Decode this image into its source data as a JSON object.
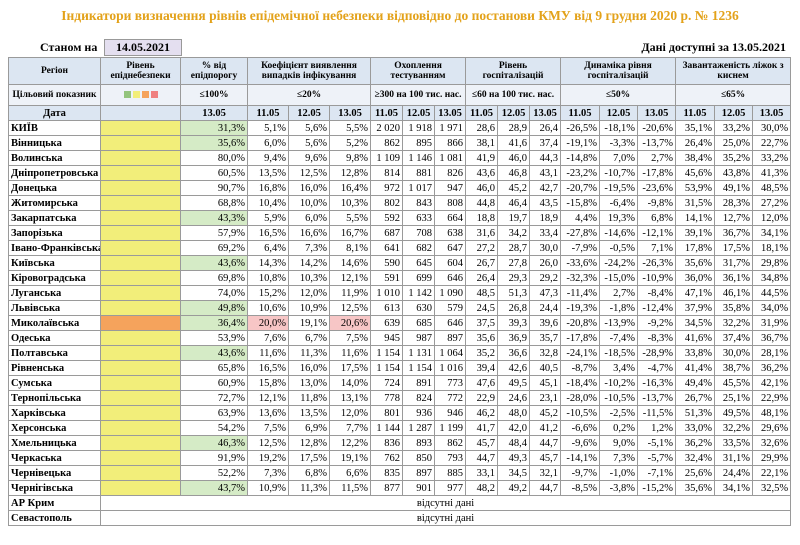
{
  "title": "Індикатори визначення рівнів епідемічної небезпеки відповідно до постанови КМУ від 9 грудня 2020 р. № 1236",
  "as_of_label": "Станом на",
  "as_of_date": "14.05.2021",
  "data_note": "Дані доступні за 13.05.2021",
  "colors": {
    "yellow": "#f2ee7a",
    "orange": "#f5a35c",
    "green": "#d5ebc6",
    "red": "#f7c6c6"
  },
  "header": {
    "region": "Регіон",
    "level": "Рівень епіднебезпеки",
    "pct": "% від епідпорогу",
    "groups": [
      "Коефіцієнт виявлення випадків інфікування",
      "Охоплення тестуванням",
      "Рівень госпіталізацій",
      "Динаміка рівня госпіталізацій",
      "Завантаженість ліжок з киснем"
    ]
  },
  "targets": {
    "label": "Цільовий показник",
    "pct": "≤100%",
    "groups": [
      "≤20%",
      "≥300 на 100 тис. нас.",
      "≤60 на 100 тис. нас.",
      "≤50%",
      "≤65%"
    ]
  },
  "dates": {
    "label": "Дата",
    "pct": "13.05",
    "groups": [
      "11.05",
      "12.05",
      "13.05"
    ]
  },
  "rows": [
    {
      "region": "КИЇВ",
      "level": "yellow",
      "pct": "31,3%",
      "pct_fill": "green",
      "values": [
        "5,1%",
        "5,6%",
        "5,5%",
        "2 020",
        "1 918",
        "1 971",
        "28,6",
        "28,9",
        "26,4",
        "-26,5%",
        "-18,1%",
        "-20,6%",
        "35,1%",
        "33,2%",
        "30,0%"
      ]
    },
    {
      "region": "Вінницька",
      "level": "yellow",
      "pct": "35,6%",
      "pct_fill": "green",
      "values": [
        "6,0%",
        "5,6%",
        "5,2%",
        "862",
        "895",
        "866",
        "38,1",
        "41,6",
        "37,4",
        "-19,1%",
        "-3,3%",
        "-13,7%",
        "26,4%",
        "25,0%",
        "22,7%"
      ]
    },
    {
      "region": "Волинська",
      "level": "yellow",
      "pct": "80,0%",
      "values": [
        "9,4%",
        "9,6%",
        "9,8%",
        "1 109",
        "1 146",
        "1 081",
        "41,9",
        "46,0",
        "44,3",
        "-14,8%",
        "7,0%",
        "2,7%",
        "38,4%",
        "35,2%",
        "33,2%"
      ]
    },
    {
      "region": "Дніпропетровська",
      "level": "yellow",
      "pct": "60,5%",
      "values": [
        "13,5%",
        "12,5%",
        "12,8%",
        "814",
        "881",
        "826",
        "43,6",
        "46,8",
        "43,1",
        "-23,2%",
        "-10,7%",
        "-17,8%",
        "45,6%",
        "43,8%",
        "41,3%"
      ]
    },
    {
      "region": "Донецька",
      "level": "yellow",
      "pct": "90,7%",
      "values": [
        "16,8%",
        "16,0%",
        "16,4%",
        "972",
        "1 017",
        "947",
        "46,0",
        "45,2",
        "42,7",
        "-20,7%",
        "-19,5%",
        "-23,6%",
        "53,9%",
        "49,1%",
        "48,5%"
      ]
    },
    {
      "region": "Житомирська",
      "level": "yellow",
      "pct": "68,8%",
      "values": [
        "10,4%",
        "10,0%",
        "10,3%",
        "802",
        "843",
        "808",
        "44,8",
        "46,4",
        "43,5",
        "-15,8%",
        "-6,4%",
        "-9,8%",
        "31,5%",
        "28,3%",
        "27,2%"
      ]
    },
    {
      "region": "Закарпатська",
      "level": "yellow",
      "pct": "43,3%",
      "pct_fill": "green",
      "values": [
        "5,9%",
        "6,0%",
        "5,5%",
        "592",
        "633",
        "664",
        "18,8",
        "19,7",
        "18,9",
        "4,4%",
        "19,3%",
        "6,8%",
        "14,1%",
        "12,7%",
        "12,0%"
      ]
    },
    {
      "region": "Запорізька",
      "level": "yellow",
      "pct": "57,9%",
      "values": [
        "16,5%",
        "16,6%",
        "16,7%",
        "687",
        "708",
        "638",
        "31,6",
        "34,2",
        "33,4",
        "-27,8%",
        "-14,6%",
        "-12,1%",
        "39,1%",
        "36,7%",
        "34,1%"
      ]
    },
    {
      "region": "Івано-Франківська",
      "level": "yellow",
      "pct": "69,2%",
      "values": [
        "6,4%",
        "7,3%",
        "8,1%",
        "641",
        "682",
        "647",
        "27,2",
        "28,7",
        "30,0",
        "-7,9%",
        "-0,5%",
        "7,1%",
        "17,8%",
        "17,5%",
        "18,1%"
      ]
    },
    {
      "region": "Київська",
      "level": "yellow",
      "pct": "43,6%",
      "pct_fill": "green",
      "values": [
        "14,3%",
        "14,2%",
        "14,6%",
        "590",
        "645",
        "604",
        "26,7",
        "27,8",
        "26,0",
        "-33,6%",
        "-24,2%",
        "-26,3%",
        "35,6%",
        "31,7%",
        "29,8%"
      ]
    },
    {
      "region": "Кіровоградська",
      "level": "yellow",
      "pct": "69,8%",
      "values": [
        "10,8%",
        "10,3%",
        "12,1%",
        "591",
        "699",
        "646",
        "26,4",
        "29,3",
        "29,2",
        "-32,3%",
        "-15,0%",
        "-10,9%",
        "36,0%",
        "36,1%",
        "34,8%"
      ]
    },
    {
      "region": "Луганська",
      "level": "yellow",
      "pct": "74,0%",
      "values": [
        "15,2%",
        "12,0%",
        "11,9%",
        "1 010",
        "1 142",
        "1 090",
        "48,5",
        "51,3",
        "47,3",
        "-11,4%",
        "2,7%",
        "-8,4%",
        "47,1%",
        "46,1%",
        "44,5%"
      ]
    },
    {
      "region": "Львівська",
      "level": "yellow",
      "pct": "49,8%",
      "pct_fill": "green",
      "values": [
        "10,6%",
        "10,9%",
        "12,5%",
        "613",
        "630",
        "579",
        "24,5",
        "26,8",
        "24,4",
        "-19,3%",
        "-1,8%",
        "-12,4%",
        "37,9%",
        "35,8%",
        "34,0%"
      ]
    },
    {
      "region": "Миколаївська",
      "level": "orange",
      "pct": "36,4%",
      "pct_fill": "green",
      "values": [
        "20,0%",
        "19,1%",
        "20,6%",
        "639",
        "685",
        "646",
        "37,5",
        "39,3",
        "39,6",
        "-20,8%",
        "-13,9%",
        "-9,2%",
        "34,5%",
        "32,2%",
        "31,9%"
      ],
      "fills": [
        "red",
        null,
        "red",
        null,
        null,
        null,
        null,
        null,
        null,
        null,
        null,
        null,
        null,
        null,
        null
      ]
    },
    {
      "region": "Одеська",
      "level": "yellow",
      "pct": "53,9%",
      "values": [
        "7,6%",
        "6,7%",
        "7,5%",
        "945",
        "987",
        "897",
        "35,6",
        "36,9",
        "35,7",
        "-17,8%",
        "-7,4%",
        "-8,3%",
        "41,6%",
        "37,4%",
        "36,7%"
      ]
    },
    {
      "region": "Полтавська",
      "level": "yellow",
      "pct": "43,6%",
      "pct_fill": "green",
      "values": [
        "11,6%",
        "11,3%",
        "11,6%",
        "1 154",
        "1 131",
        "1 064",
        "35,2",
        "36,6",
        "32,8",
        "-24,1%",
        "-18,5%",
        "-28,9%",
        "33,8%",
        "30,0%",
        "28,1%"
      ]
    },
    {
      "region": "Рівненська",
      "level": "yellow",
      "pct": "65,8%",
      "values": [
        "16,5%",
        "16,0%",
        "17,5%",
        "1 154",
        "1 154",
        "1 016",
        "39,4",
        "42,6",
        "40,5",
        "-8,7%",
        "3,4%",
        "-4,7%",
        "41,4%",
        "38,7%",
        "36,2%"
      ]
    },
    {
      "region": "Сумська",
      "level": "yellow",
      "pct": "60,9%",
      "values": [
        "15,8%",
        "13,0%",
        "14,0%",
        "724",
        "891",
        "773",
        "47,6",
        "49,5",
        "45,1",
        "-18,4%",
        "-10,2%",
        "-16,3%",
        "49,4%",
        "45,5%",
        "42,1%"
      ]
    },
    {
      "region": "Тернопільська",
      "level": "yellow",
      "pct": "72,7%",
      "values": [
        "12,1%",
        "11,8%",
        "13,1%",
        "778",
        "824",
        "772",
        "22,9",
        "24,6",
        "23,1",
        "-28,0%",
        "-10,5%",
        "-13,7%",
        "26,7%",
        "25,1%",
        "22,9%"
      ]
    },
    {
      "region": "Харківська",
      "level": "yellow",
      "pct": "63,9%",
      "values": [
        "13,6%",
        "13,5%",
        "12,0%",
        "801",
        "936",
        "946",
        "46,2",
        "48,0",
        "45,2",
        "-10,5%",
        "-2,5%",
        "-11,5%",
        "51,3%",
        "49,5%",
        "48,1%"
      ]
    },
    {
      "region": "Херсонська",
      "level": "yellow",
      "pct": "54,2%",
      "values": [
        "7,5%",
        "6,9%",
        "7,7%",
        "1 144",
        "1 287",
        "1 199",
        "41,7",
        "42,0",
        "41,2",
        "-6,6%",
        "0,2%",
        "1,2%",
        "33,0%",
        "32,2%",
        "29,6%"
      ]
    },
    {
      "region": "Хмельницька",
      "level": "yellow",
      "pct": "46,3%",
      "pct_fill": "green",
      "values": [
        "12,5%",
        "12,8%",
        "12,2%",
        "836",
        "893",
        "862",
        "45,7",
        "48,4",
        "44,7",
        "-9,6%",
        "9,0%",
        "-5,1%",
        "36,2%",
        "33,5%",
        "32,6%"
      ]
    },
    {
      "region": "Черкаська",
      "level": "yellow",
      "pct": "91,9%",
      "values": [
        "19,2%",
        "17,5%",
        "19,1%",
        "762",
        "850",
        "793",
        "44,7",
        "49,3",
        "45,7",
        "-14,1%",
        "7,3%",
        "-5,7%",
        "32,4%",
        "31,1%",
        "29,9%"
      ]
    },
    {
      "region": "Чернівецька",
      "level": "yellow",
      "pct": "52,2%",
      "values": [
        "7,3%",
        "6,8%",
        "6,6%",
        "835",
        "897",
        "885",
        "33,1",
        "34,5",
        "32,1",
        "-9,7%",
        "-1,0%",
        "-7,1%",
        "25,6%",
        "24,4%",
        "22,1%"
      ]
    },
    {
      "region": "Чернігівська",
      "level": "yellow",
      "pct": "43,7%",
      "pct_fill": "green",
      "values": [
        "10,9%",
        "11,3%",
        "11,5%",
        "877",
        "901",
        "977",
        "48,2",
        "49,2",
        "44,7",
        "-8,5%",
        "-3,8%",
        "-15,2%",
        "35,6%",
        "34,1%",
        "32,5%"
      ]
    }
  ],
  "missing": [
    {
      "region": "АР Крим",
      "text": "відсутні дані"
    },
    {
      "region": "Севастополь",
      "text": "відсутні дані"
    }
  ]
}
